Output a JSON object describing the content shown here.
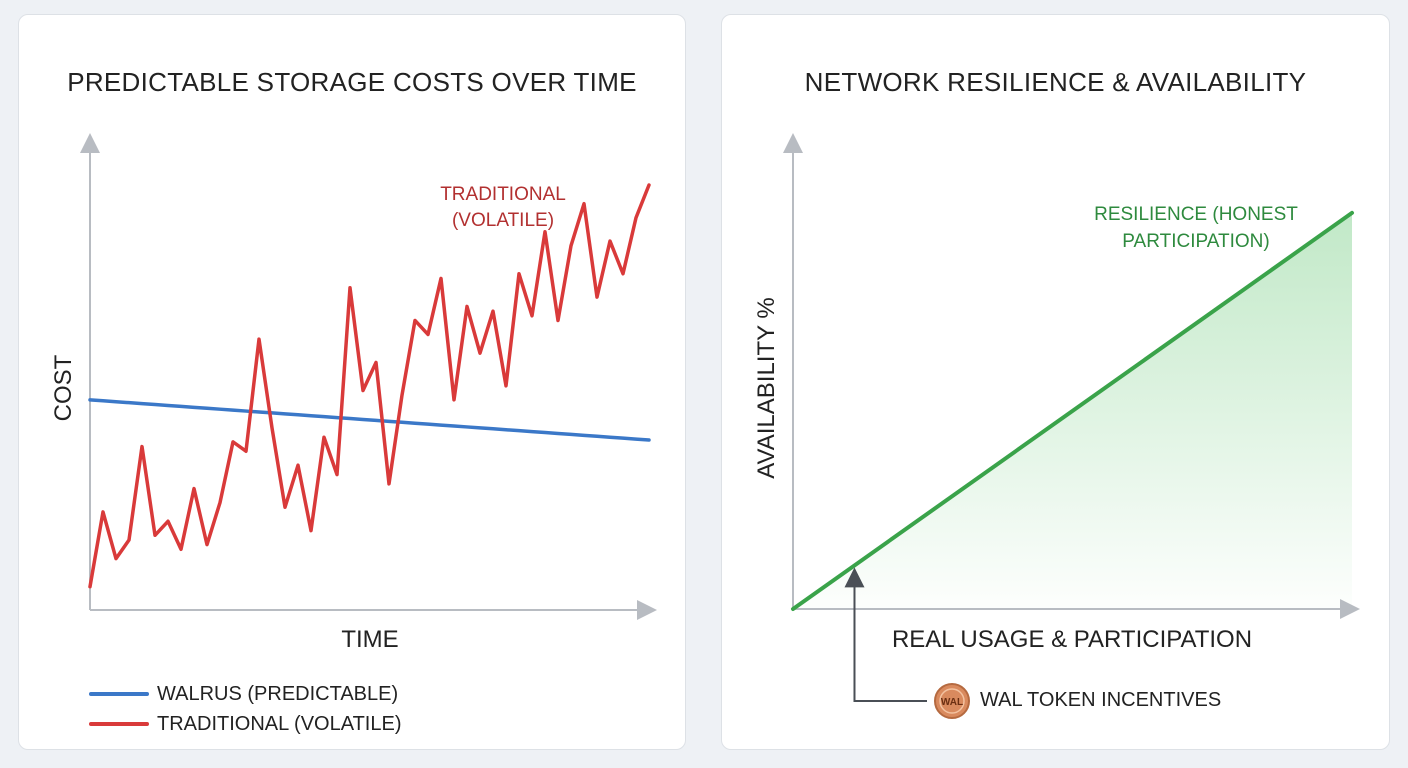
{
  "chart_data": [
    {
      "type": "line",
      "title": "PREDICTABLE STORAGE COSTS OVER TIME",
      "xlabel": "TIME",
      "ylabel": "COST",
      "grid": false,
      "legend_position": "bottom-left",
      "x": [
        0,
        1,
        2,
        3,
        4,
        5,
        6,
        7,
        8,
        9,
        10,
        11,
        12,
        13,
        14,
        15,
        16,
        17,
        18,
        19,
        20,
        21,
        22,
        23,
        24,
        25,
        26,
        27,
        28,
        29,
        30,
        31,
        32,
        33,
        34,
        35,
        36,
        37,
        38,
        39,
        40,
        41,
        42,
        43
      ],
      "xlim": [
        0,
        43
      ],
      "ylim": [
        0,
        100
      ],
      "series": [
        {
          "name": "WALRUS (PREDICTABLE)",
          "color": "#3b78c8",
          "values": [
            45,
            44.8,
            44.6,
            44.4,
            44.2,
            44,
            43.8,
            43.6,
            43.4,
            43.2,
            43,
            42.8,
            42.6,
            42.4,
            42.2,
            42,
            41.8,
            41.6,
            41.4,
            41.2,
            41,
            40.8,
            40.6,
            40.4,
            40.2,
            40,
            39.8,
            39.6,
            39.4,
            39.2,
            39,
            38.8,
            38.6,
            38.4,
            38.2,
            38,
            37.8,
            37.6,
            37.4,
            37.2,
            37,
            36.8,
            36.6,
            36.4
          ]
        },
        {
          "name": "TRADITIONAL (VOLATILE)",
          "color": "#d93a3a",
          "values": [
            5,
            21,
            11,
            15,
            35,
            16,
            19,
            13,
            26,
            14,
            23,
            36,
            34,
            58,
            39,
            22,
            31,
            17,
            37,
            29,
            69,
            47,
            53,
            27,
            46,
            62,
            59,
            71,
            45,
            65,
            55,
            64,
            48,
            72,
            63,
            81,
            62,
            78,
            87,
            67,
            79,
            72,
            84,
            91
          ]
        }
      ],
      "annotations": [
        {
          "text_line1": "TRADITIONAL",
          "text_line2": "(VOLATILE)",
          "color": "#b23030"
        }
      ]
    },
    {
      "type": "area",
      "title": "NETWORK RESILIENCE & AVAILABILITY",
      "xlabel": "REAL USAGE & PARTICIPATION",
      "ylabel": "AVAILABILITY %",
      "grid": false,
      "x": [
        0,
        100
      ],
      "xlim": [
        0,
        100
      ],
      "ylim": [
        0,
        100
      ],
      "series": [
        {
          "name": "RESILIENCE (HONEST PARTICIPATION)",
          "color": "#3aa34a",
          "values": [
            0,
            85
          ]
        }
      ],
      "annotations": [
        {
          "text_line1": "RESILIENCE (HONEST",
          "text_line2": "PARTICIPATION)",
          "color": "#2e8a3e"
        },
        {
          "text": "WAL TOKEN INCENTIVES",
          "x": 11,
          "badge": "WAL"
        }
      ]
    }
  ]
}
